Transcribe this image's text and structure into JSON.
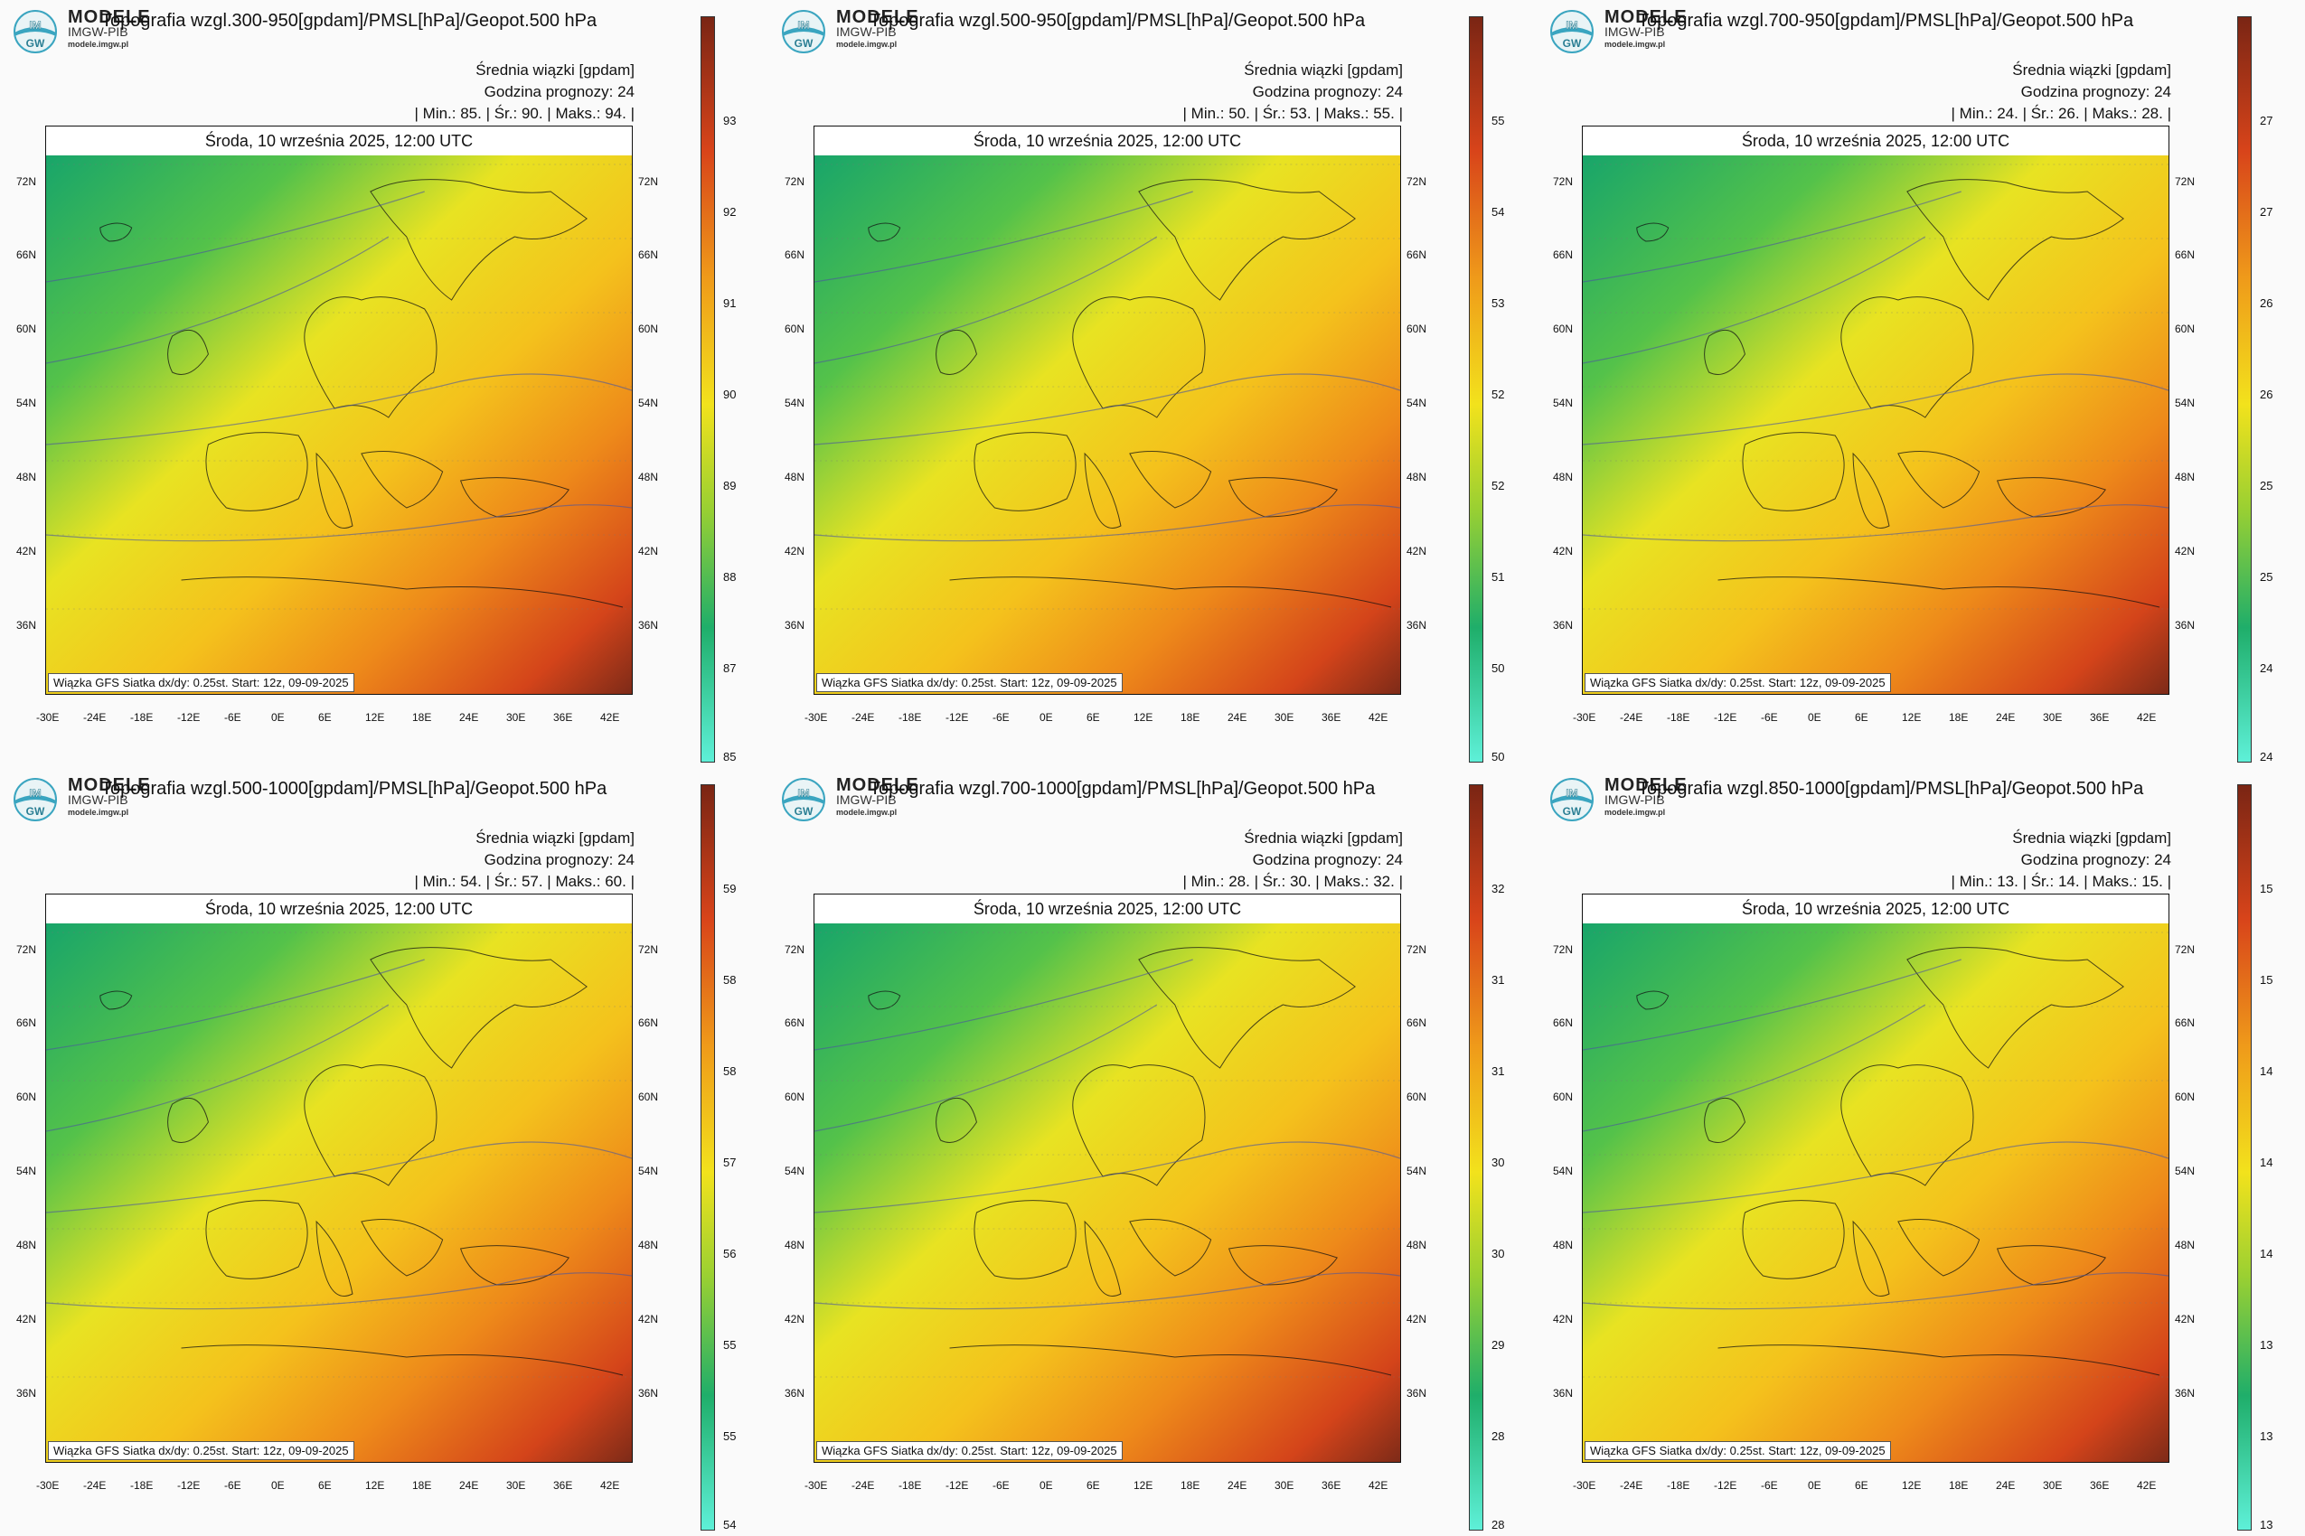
{
  "brand": {
    "name": "MODELE",
    "sub": "IMGW-PIB",
    "url": "modele.imgw.pl",
    "logo_top": "IM",
    "logo_bottom": "GW"
  },
  "common": {
    "subtitle": "Średnia wiązki [gpdam]",
    "forecast_hour": "Godzina prognozy: 24",
    "date": "Środa, 10 września 2025, 12:00 UTC",
    "footer": "Wiązka GFS Siatka dx/dy: 0.25st. Start: 12z, 09-09-2025",
    "lat_ticks": [
      "72N",
      "66N",
      "60N",
      "54N",
      "48N",
      "42N",
      "36N"
    ],
    "lon_ticks": [
      "-30E",
      "-24E",
      "-18E",
      "-12E",
      "-6E",
      "0E",
      "6E",
      "12E",
      "18E",
      "24E",
      "30E",
      "36E",
      "42E"
    ]
  },
  "panels": [
    {
      "title": "Topografia wzgl.300-950[gpdam]/PMSL[hPa]/Geopot.500 hPa",
      "stats": "| Min.: 85. | Śr.: 90. | Maks.: 94. |",
      "colorbar_labels": [
        "93",
        "92",
        "91",
        "90",
        "89",
        "88",
        "87",
        "85"
      ]
    },
    {
      "title": "Topografia wzgl.500-950[gpdam]/PMSL[hPa]/Geopot.500 hPa",
      "stats": "| Min.: 50. | Śr.: 53. | Maks.: 55. |",
      "colorbar_labels": [
        "55",
        "54",
        "53",
        "52",
        "52",
        "51",
        "50",
        "50"
      ]
    },
    {
      "title": "Topografia wzgl.700-950[gpdam]/PMSL[hPa]/Geopot.500 hPa",
      "stats": "| Min.: 24. | Śr.: 26. | Maks.: 28. |",
      "colorbar_labels": [
        "27",
        "27",
        "26",
        "26",
        "25",
        "25",
        "24",
        "24"
      ]
    },
    {
      "title": "Topografia wzgl.500-1000[gpdam]/PMSL[hPa]/Geopot.500 hPa",
      "stats": "| Min.: 54. | Śr.: 57. | Maks.: 60. |",
      "colorbar_labels": [
        "59",
        "58",
        "58",
        "57",
        "56",
        "55",
        "55",
        "54"
      ]
    },
    {
      "title": "Topografia wzgl.700-1000[gpdam]/PMSL[hPa]/Geopot.500 hPa",
      "stats": "| Min.: 28. | Śr.: 30. | Maks.: 32. |",
      "colorbar_labels": [
        "32",
        "31",
        "31",
        "30",
        "30",
        "29",
        "28",
        "28"
      ]
    },
    {
      "title": "Topografia wzgl.850-1000[gpdam]/PMSL[hPa]/Geopot.500 hPa",
      "stats": "| Min.: 13. | Śr.: 14. | Maks.: 15. |",
      "colorbar_labels": [
        "15",
        "15",
        "14",
        "14",
        "14",
        "13",
        "13",
        "13"
      ]
    }
  ],
  "colors": {
    "green": "#1fae6a",
    "yellow": "#f2e21c",
    "orange": "#ef9a1a",
    "red": "#d8441a",
    "darkred": "#7a2514",
    "cyan": "#5ef0d8"
  }
}
